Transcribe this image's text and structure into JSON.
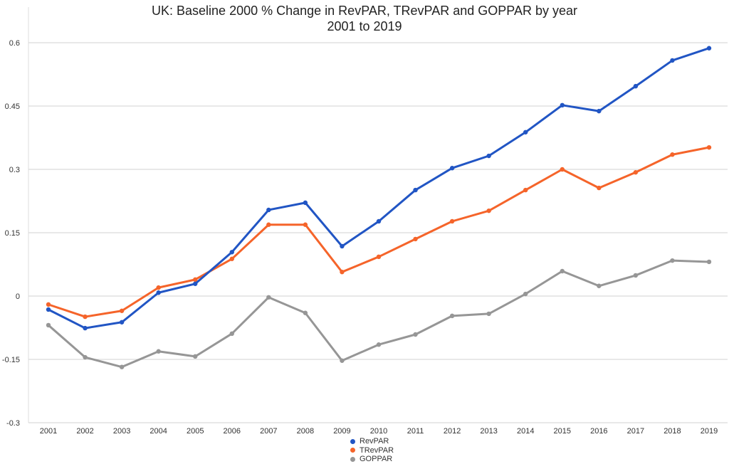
{
  "chart_data": {
    "type": "line",
    "title": "UK: Baseline 2000 % Change in RevPAR, TRevPAR and GOPPAR by year",
    "subtitle": "2001 to 2019",
    "xlabel": "",
    "ylabel": "",
    "ylim": [
      -0.3,
      0.6
    ],
    "yticks": [
      "0.6",
      "0.45",
      "0.3",
      "0.15",
      "0",
      "-0.15",
      "-0.3"
    ],
    "grid": true,
    "legend_position": "bottom",
    "categories": [
      "2001",
      "2002",
      "2003",
      "2004",
      "2005",
      "2006",
      "2007",
      "2008",
      "2009",
      "2010",
      "2011",
      "2012",
      "2013",
      "2014",
      "2015",
      "2016",
      "2017",
      "2018",
      "2019"
    ],
    "series": [
      {
        "name": "RevPAR",
        "color": "#2155c4",
        "values": [
          -0.032,
          -0.076,
          -0.062,
          0.008,
          0.029,
          0.104,
          0.204,
          0.221,
          0.118,
          0.177,
          0.251,
          0.303,
          0.332,
          0.388,
          0.452,
          0.438,
          0.497,
          0.558,
          0.587
        ]
      },
      {
        "name": "TRevPAR",
        "color": "#f5642a",
        "values": [
          -0.02,
          -0.049,
          -0.035,
          0.02,
          0.039,
          0.088,
          0.169,
          0.169,
          0.057,
          0.093,
          0.135,
          0.177,
          0.202,
          0.251,
          0.3,
          0.256,
          0.293,
          0.335,
          0.352
        ]
      },
      {
        "name": "GOPPAR",
        "color": "#969696",
        "values": [
          -0.069,
          -0.145,
          -0.168,
          -0.131,
          -0.143,
          -0.089,
          -0.003,
          -0.04,
          -0.153,
          -0.115,
          -0.091,
          -0.047,
          -0.042,
          0.005,
          0.059,
          0.024,
          0.049,
          0.084,
          0.081
        ]
      }
    ]
  }
}
